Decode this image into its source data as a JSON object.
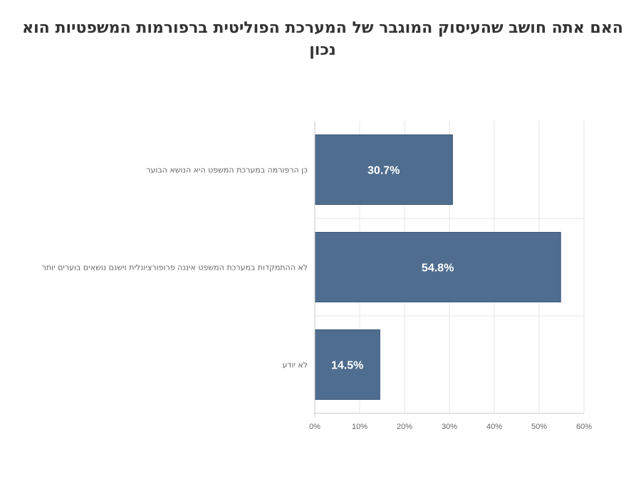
{
  "chart_data": {
    "type": "bar",
    "orientation": "horizontal",
    "title": "האם אתה חושב שהעיסוק המוגבר של המערכת הפוליטית ברפורמות המשפטיות הוא נכון",
    "categories": [
      "כן הרפורמה במערכת המשפט היא הנושא הבוער",
      "לא ההתמקדות במערכת המשפט איננה פרופורציונלית וישנם נושאים בוערים יותר",
      "לא יודע"
    ],
    "values": [
      30.7,
      54.8,
      14.5
    ],
    "value_labels": [
      "30.7%",
      "54.8%",
      "14.5%"
    ],
    "xlim": [
      0,
      60
    ],
    "x_ticks": [
      0,
      10,
      20,
      30,
      40,
      50,
      60
    ],
    "x_tick_labels": [
      "0%",
      "10%",
      "20%",
      "30%",
      "40%",
      "50%",
      "60%"
    ],
    "xlabel": "",
    "ylabel": "",
    "grid": true,
    "legend": "none",
    "bar_color": "#4f6d8f",
    "grid_color": "#e6e6e6",
    "axis_color": "#c8c8c8"
  }
}
